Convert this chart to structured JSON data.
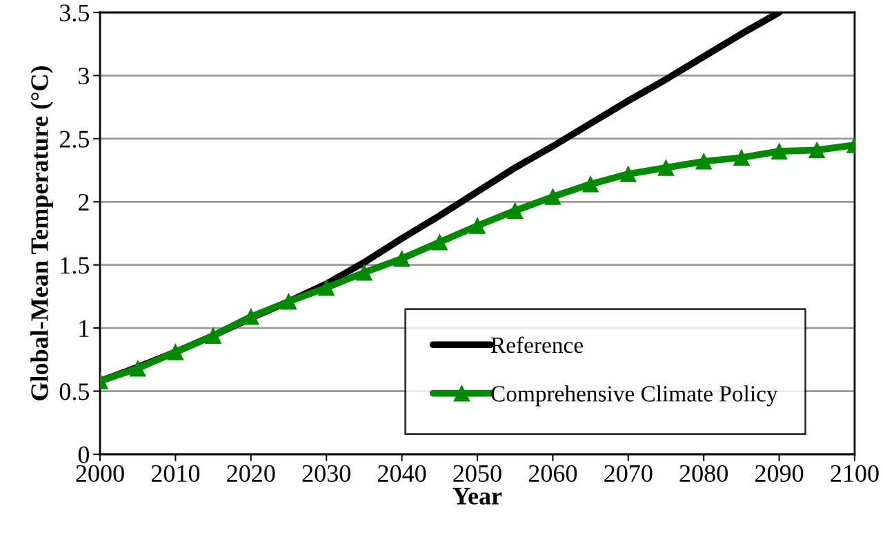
{
  "chart_data": {
    "type": "line",
    "xlabel": "Year",
    "ylabel": "Global-Mean Temperature (°C)",
    "x": [
      2000,
      2005,
      2010,
      2015,
      2020,
      2025,
      2030,
      2035,
      2040,
      2045,
      2050,
      2055,
      2060,
      2065,
      2070,
      2075,
      2080,
      2085,
      2090,
      2095,
      2100
    ],
    "series": [
      {
        "name": "Reference",
        "color": "#000000",
        "marker": "none",
        "values": [
          0.58,
          0.69,
          0.81,
          0.94,
          1.08,
          1.21,
          1.35,
          1.52,
          1.71,
          1.89,
          2.08,
          2.27,
          2.44,
          2.62,
          2.8,
          2.97,
          3.15,
          3.33,
          3.5,
          null,
          null
        ]
      },
      {
        "name": "Comprehensive Climate Policy",
        "color": "#008a00",
        "marker": "triangle",
        "values": [
          0.58,
          0.68,
          0.81,
          0.94,
          1.09,
          1.21,
          1.32,
          1.44,
          1.55,
          1.68,
          1.81,
          1.93,
          2.04,
          2.14,
          2.22,
          2.27,
          2.32,
          2.35,
          2.4,
          2.41,
          2.45
        ]
      }
    ],
    "xlim": [
      2000,
      2100
    ],
    "xticks": [
      2000,
      2010,
      2020,
      2030,
      2040,
      2050,
      2060,
      2070,
      2080,
      2090,
      2100
    ],
    "ylim": [
      0,
      3.5
    ],
    "yticks": [
      0,
      0.5,
      1,
      1.5,
      2,
      2.5,
      3,
      3.5
    ],
    "grid": "y",
    "legend": "bottom right",
    "line_style": "solid"
  }
}
